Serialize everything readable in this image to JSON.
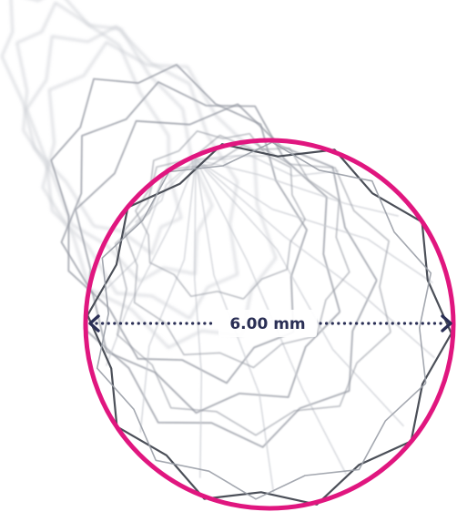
{
  "image": {
    "subject": "stent-icon",
    "colors": {
      "background": "#ffffff",
      "wire_light": "#c9ccd2",
      "wire_mid": "#9a9ea7",
      "wire_dark": "#4b4f58",
      "diameter_circle": "#e0167f",
      "dimension_line": "#2a2f55"
    }
  },
  "dimension": {
    "label": "6.00 mm"
  }
}
